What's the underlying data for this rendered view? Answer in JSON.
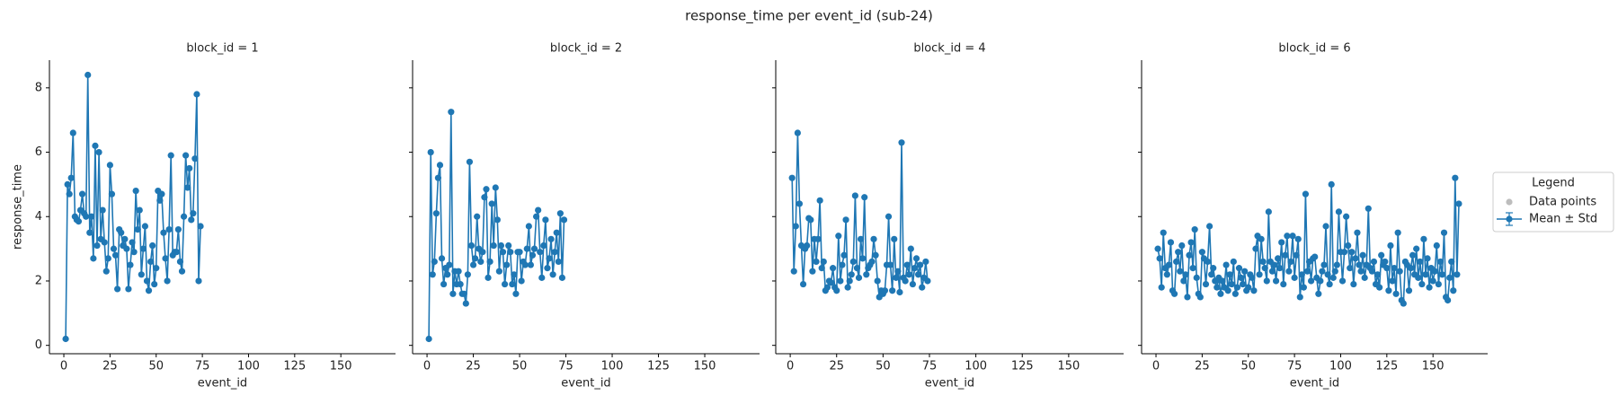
{
  "title": "response_time per event_id (sub-24)",
  "legend": {
    "title": "Legend",
    "entries": [
      {
        "name": "Data points",
        "color": "#bdbdbd"
      },
      {
        "name": "Mean ± Std",
        "color": "#1f77b4"
      }
    ]
  },
  "chart_data": [
    {
      "type": "line",
      "title": "block_id = 1",
      "xlabel": "event_id",
      "ylabel": "response_time",
      "color": "#1f77b4",
      "xlim": [
        -7.8,
        179.6
      ],
      "ylim": [
        -0.26,
        8.86
      ],
      "xticks": [
        0,
        25,
        50,
        75,
        100,
        125,
        150
      ],
      "yticks": [
        0,
        2,
        4,
        6,
        8
      ],
      "x": [
        1,
        2,
        3,
        4,
        5,
        6,
        7,
        8,
        9,
        10,
        11,
        12,
        13,
        14,
        15,
        16,
        17,
        18,
        19,
        20,
        21,
        22,
        23,
        24,
        25,
        26,
        27,
        28,
        29,
        30,
        31,
        32,
        33,
        34,
        35,
        36,
        37,
        38,
        39,
        40,
        41,
        42,
        43,
        44,
        45,
        46,
        47,
        48,
        49,
        50,
        51,
        52,
        53,
        54,
        55,
        56,
        57,
        58,
        59,
        60,
        61,
        62,
        63,
        64,
        65,
        66,
        67,
        68,
        69,
        70,
        71,
        72,
        73,
        74
      ],
      "values": [
        0.2,
        5.0,
        4.7,
        5.2,
        6.6,
        4.0,
        3.9,
        3.85,
        4.2,
        4.7,
        4.1,
        4.0,
        8.4,
        3.5,
        4.0,
        2.7,
        6.2,
        3.1,
        6.0,
        3.3,
        4.2,
        3.2,
        2.3,
        2.7,
        5.6,
        4.7,
        3.0,
        2.8,
        1.75,
        3.6,
        3.5,
        3.1,
        3.3,
        3.0,
        1.75,
        2.5,
        3.2,
        2.9,
        4.8,
        3.6,
        4.2,
        2.2,
        3.0,
        3.7,
        2.0,
        1.7,
        2.6,
        3.1,
        1.9,
        2.4,
        4.8,
        4.5,
        4.7,
        3.5,
        2.7,
        2.0,
        3.6,
        5.9,
        2.8,
        2.9,
        2.9,
        3.6,
        2.6,
        2.3,
        4.0,
        5.9,
        4.9,
        5.5,
        3.9,
        4.1,
        5.8,
        7.8,
        2.0,
        3.7
      ]
    },
    {
      "type": "line",
      "title": "block_id = 2",
      "xlabel": "event_id",
      "color": "#1f77b4",
      "xlim": [
        -7.8,
        179.6
      ],
      "ylim": [
        -0.26,
        8.86
      ],
      "xticks": [
        0,
        25,
        50,
        75,
        100,
        125,
        150
      ],
      "yticks": [
        0,
        2,
        4,
        6,
        8
      ],
      "x": [
        1,
        2,
        3,
        4,
        5,
        6,
        7,
        8,
        9,
        10,
        11,
        12,
        13,
        14,
        15,
        16,
        17,
        18,
        19,
        20,
        21,
        22,
        23,
        24,
        25,
        26,
        27,
        28,
        29,
        30,
        31,
        32,
        33,
        34,
        35,
        36,
        37,
        38,
        39,
        40,
        41,
        42,
        43,
        44,
        45,
        46,
        47,
        48,
        49,
        50,
        51,
        52,
        53,
        54,
        55,
        56,
        57,
        58,
        59,
        60,
        61,
        62,
        63,
        64,
        65,
        66,
        67,
        68,
        69,
        70,
        71,
        72,
        73,
        74
      ],
      "values": [
        0.2,
        6.0,
        2.2,
        2.6,
        4.1,
        5.2,
        5.6,
        2.7,
        1.9,
        2.4,
        2.2,
        2.5,
        7.25,
        1.6,
        2.3,
        1.9,
        2.3,
        1.9,
        1.6,
        1.6,
        1.3,
        2.2,
        5.7,
        3.1,
        2.5,
        2.7,
        4.0,
        3.0,
        2.6,
        2.9,
        4.6,
        4.85,
        2.1,
        2.6,
        4.4,
        3.1,
        4.9,
        3.9,
        2.3,
        3.1,
        2.9,
        1.9,
        2.5,
        3.1,
        2.9,
        1.9,
        2.2,
        1.6,
        2.9,
        2.9,
        2.0,
        2.6,
        2.5,
        3.0,
        3.7,
        2.5,
        2.8,
        3.0,
        4.0,
        4.2,
        2.9,
        2.1,
        3.1,
        3.9,
        2.4,
        2.7,
        3.3,
        2.2,
        2.9,
        3.5,
        2.6,
        4.1,
        2.1,
        3.9
      ]
    },
    {
      "type": "line",
      "title": "block_id = 4",
      "xlabel": "event_id",
      "color": "#1f77b4",
      "xlim": [
        -7.8,
        179.6
      ],
      "ylim": [
        -0.26,
        8.86
      ],
      "xticks": [
        0,
        25,
        50,
        75,
        100,
        125,
        150
      ],
      "yticks": [
        0,
        2,
        4,
        6,
        8
      ],
      "x": [
        1,
        2,
        3,
        4,
        5,
        6,
        7,
        8,
        9,
        10,
        11,
        12,
        13,
        14,
        15,
        16,
        17,
        18,
        19,
        20,
        21,
        22,
        23,
        24,
        25,
        26,
        27,
        28,
        29,
        30,
        31,
        32,
        33,
        34,
        35,
        36,
        37,
        38,
        39,
        40,
        41,
        42,
        43,
        44,
        45,
        46,
        47,
        48,
        49,
        50,
        51,
        52,
        53,
        54,
        55,
        56,
        57,
        58,
        59,
        60,
        61,
        62,
        63,
        64,
        65,
        66,
        67,
        68,
        69,
        70,
        71,
        72,
        73,
        74
      ],
      "values": [
        5.2,
        2.3,
        3.7,
        6.6,
        4.4,
        3.1,
        1.9,
        3.0,
        3.1,
        3.95,
        3.9,
        2.3,
        3.3,
        2.6,
        3.3,
        4.5,
        2.4,
        2.6,
        1.7,
        1.8,
        2.0,
        1.95,
        2.4,
        1.8,
        1.7,
        3.4,
        2.0,
        2.5,
        2.8,
        3.9,
        1.8,
        2.0,
        2.2,
        2.6,
        4.65,
        2.4,
        2.1,
        3.3,
        2.7,
        4.6,
        2.2,
        2.4,
        2.5,
        2.6,
        3.3,
        2.8,
        2.0,
        1.5,
        1.7,
        1.6,
        1.7,
        2.5,
        4.0,
        2.5,
        1.7,
        3.3,
        2.1,
        2.3,
        1.65,
        6.3,
        2.1,
        2.0,
        2.5,
        2.2,
        3.0,
        1.9,
        2.4,
        2.7,
        2.2,
        2.5,
        1.8,
        2.1,
        2.6,
        2.0
      ]
    },
    {
      "type": "line",
      "title": "block_id = 6",
      "xlabel": "event_id",
      "color": "#1f77b4",
      "xlim": [
        -7.8,
        179.6
      ],
      "ylim": [
        -0.26,
        8.86
      ],
      "xticks": [
        0,
        25,
        50,
        75,
        100,
        125,
        150
      ],
      "yticks": [
        0,
        2,
        4,
        6,
        8
      ],
      "x": [
        1,
        2,
        3,
        4,
        5,
        6,
        7,
        8,
        9,
        10,
        11,
        12,
        13,
        14,
        15,
        16,
        17,
        18,
        19,
        20,
        21,
        22,
        23,
        24,
        25,
        26,
        27,
        28,
        29,
        30,
        31,
        32,
        33,
        34,
        35,
        36,
        37,
        38,
        39,
        40,
        41,
        42,
        43,
        44,
        45,
        46,
        47,
        48,
        49,
        50,
        51,
        52,
        53,
        54,
        55,
        56,
        57,
        58,
        59,
        60,
        61,
        62,
        63,
        64,
        65,
        66,
        67,
        68,
        69,
        70,
        71,
        72,
        73,
        74,
        75,
        76,
        77,
        78,
        79,
        80,
        81,
        82,
        83,
        84,
        85,
        86,
        87,
        88,
        89,
        90,
        91,
        92,
        93,
        94,
        95,
        96,
        97,
        98,
        99,
        100,
        101,
        102,
        103,
        104,
        105,
        106,
        107,
        108,
        109,
        110,
        111,
        112,
        113,
        114,
        115,
        116,
        117,
        118,
        119,
        120,
        121,
        122,
        123,
        124,
        125,
        126,
        127,
        128,
        129,
        130,
        131,
        132,
        133,
        134,
        135,
        136,
        137,
        138,
        139,
        140,
        141,
        142,
        143,
        144,
        145,
        146,
        147,
        148,
        149,
        150,
        151,
        152,
        153,
        154,
        155,
        156,
        157,
        158,
        159,
        160,
        161,
        162,
        163,
        164
      ],
      "values": [
        3.0,
        2.7,
        1.8,
        3.5,
        2.4,
        2.2,
        2.5,
        3.2,
        1.7,
        1.6,
        2.6,
        2.9,
        2.3,
        3.1,
        2.0,
        2.2,
        1.5,
        2.8,
        3.2,
        2.4,
        3.6,
        2.1,
        1.6,
        1.5,
        2.9,
        2.7,
        1.9,
        2.6,
        3.7,
        2.2,
        2.4,
        2.0,
        1.8,
        2.1,
        1.6,
        2.0,
        1.8,
        2.5,
        1.7,
        2.2,
        1.9,
        2.6,
        1.6,
        1.8,
        2.4,
        2.1,
        1.9,
        2.3,
        1.7,
        1.8,
        2.2,
        2.1,
        1.7,
        3.0,
        3.4,
        2.2,
        3.3,
        2.6,
        2.4,
        2.0,
        4.15,
        2.6,
        2.3,
        2.5,
        2.0,
        2.7,
        2.4,
        3.2,
        1.9,
        2.8,
        3.4,
        2.3,
        2.6,
        3.4,
        2.1,
        2.8,
        3.3,
        1.5,
        2.2,
        1.8,
        4.7,
        2.3,
        2.6,
        2.0,
        2.7,
        2.75,
        2.1,
        1.6,
        2.0,
        2.3,
        2.5,
        3.7,
        2.2,
        1.9,
        5.0,
        2.1,
        2.3,
        2.5,
        4.15,
        2.9,
        2.0,
        2.9,
        4.0,
        3.1,
        2.4,
        2.9,
        1.9,
        2.7,
        3.5,
        2.5,
        2.3,
        2.8,
        2.1,
        2.5,
        4.25,
        2.4,
        2.3,
        2.6,
        1.9,
        2.2,
        1.8,
        2.8,
        2.5,
        2.6,
        2.4,
        1.7,
        3.1,
        2.0,
        2.4,
        1.6,
        3.5,
        2.3,
        1.4,
        1.3,
        2.6,
        2.5,
        1.7,
        2.4,
        2.8,
        2.2,
        3.0,
        2.1,
        2.6,
        1.9,
        3.3,
        2.2,
        2.7,
        1.8,
        2.4,
        2.0,
        2.3,
        3.1,
        1.9,
        2.6,
        2.2,
        3.5,
        1.5,
        1.4,
        2.1,
        2.6,
        1.7,
        5.2,
        2.2,
        4.4
      ]
    }
  ]
}
